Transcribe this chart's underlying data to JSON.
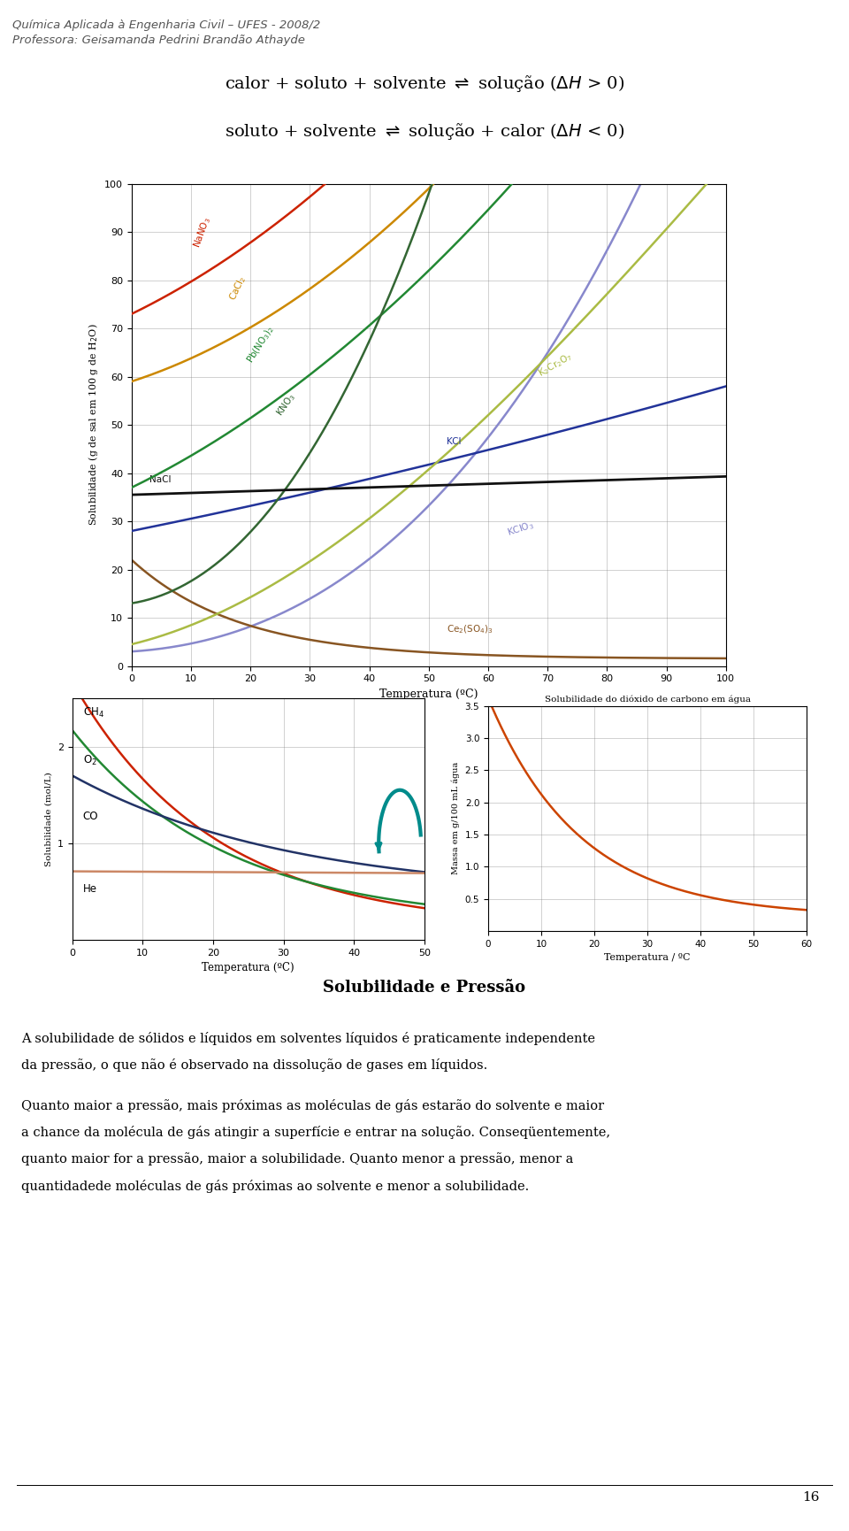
{
  "header_line1": "Química Aplicada à Engenharia Civil – UFES - 2008/2",
  "header_line2": "Professora: Geisamanda Pedrini Brandão Athayde",
  "section_title": "Solubilidade e Pressão",
  "para1": "A solubilidade de sólidos e líquidos em solventes líquidos é praticamente independente",
  "para1b": "da pressão, o que não é observado na dissolução de gases em líquidos.",
  "para2": "Quanto maior a pressão, mais próximas as moléculas de gás estarão do solvente e maior",
  "para2b": "a chance da molécula de gás atingir a superfície e entrar na solução. Conseqüentemente,",
  "para2c": "quanto maior for a pressão, maior a solubilidade. Quanto menor a pressão, menor a",
  "para2d": "quantidadede moléculas de gás próximas ao solvente e menor a solubilidade.",
  "page_num": "16",
  "bg_color": "#ffffff",
  "text_color": "#000000",
  "header_color": "#555555",
  "salt_colors": {
    "NaNO3": "#CC2200",
    "CaCl2": "#CC8800",
    "PbNO3": "#228833",
    "KNO3": "#336633",
    "KCl": "#223399",
    "K2Cr2O7": "#AABB44",
    "NaCl": "#111111",
    "KClO3": "#8888CC",
    "Ce2SO4": "#885522"
  },
  "gas_colors": {
    "CH4": "#CC2200",
    "O2": "#228833",
    "CO": "#223366",
    "He": "#CC8866"
  },
  "co2_color": "#CC4400",
  "teal_color": "#008B8B"
}
